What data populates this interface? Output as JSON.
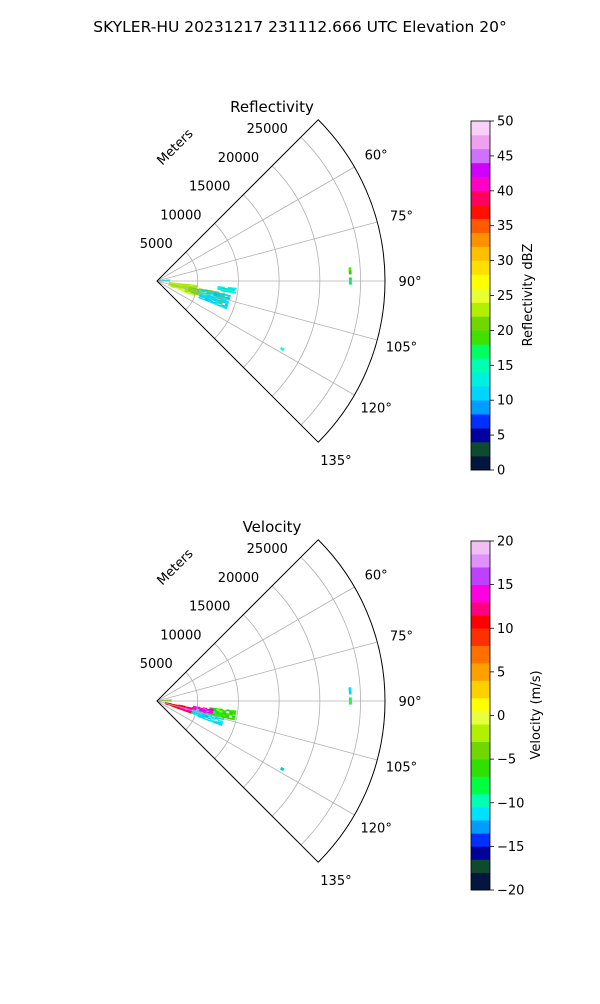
{
  "figure": {
    "suptitle": "SKYLER-HU  20231217  231112.666 UTC Elevation 20°"
  },
  "chart_data": [
    {
      "type": "polar_ppi",
      "title": "Reflectivity",
      "radial_label": "Meters",
      "r_ticks": [
        5000,
        10000,
        15000,
        20000,
        25000
      ],
      "r_tick_labels": [
        "5000",
        "10000",
        "15000",
        "20000",
        "25000"
      ],
      "r_max": 28000,
      "theta_range_deg": [
        45,
        135
      ],
      "theta_ticks_deg": [
        60,
        75,
        90,
        105,
        120,
        135
      ],
      "theta_tick_labels": [
        "60°",
        "75°",
        "90°",
        "105°",
        "120°",
        "135°"
      ],
      "grid": true,
      "colorbar": {
        "label": "Reflectivity dBZ",
        "min": 0,
        "max": 50,
        "ticks": [
          0,
          5,
          10,
          15,
          20,
          25,
          30,
          35,
          40,
          45,
          50
        ],
        "tick_labels": [
          "0",
          "5",
          "10",
          "15",
          "20",
          "25",
          "30",
          "35",
          "40",
          "45",
          "50"
        ],
        "color_stops": [
          [
            0,
            "#04153f"
          ],
          [
            2,
            "#0d4a2e"
          ],
          [
            4,
            "#00009a"
          ],
          [
            6,
            "#0030ff"
          ],
          [
            8,
            "#009cff"
          ],
          [
            10,
            "#00d4ff"
          ],
          [
            12,
            "#00f0e0"
          ],
          [
            14,
            "#00ffb0"
          ],
          [
            16,
            "#00ff60"
          ],
          [
            18,
            "#40e000"
          ],
          [
            20,
            "#70d800"
          ],
          [
            22,
            "#b0f000"
          ],
          [
            24,
            "#e8ff30"
          ],
          [
            26,
            "#ffff00"
          ],
          [
            28,
            "#ffe000"
          ],
          [
            30,
            "#ffc000"
          ],
          [
            32,
            "#ff9000"
          ],
          [
            34,
            "#ff5a00"
          ],
          [
            36,
            "#ff1000"
          ],
          [
            38,
            "#ff0060"
          ],
          [
            40,
            "#ff00c8"
          ],
          [
            42,
            "#d000ff"
          ],
          [
            44,
            "#d070ff"
          ],
          [
            46,
            "#f0a0f0"
          ],
          [
            48,
            "#f8d0f8"
          ],
          [
            50,
            "#fdf0fd"
          ]
        ]
      },
      "echo_regions": [
        {
          "theta_deg": [
            96,
            112
          ],
          "range_m": [
            1500,
            5000
          ],
          "value": 22
        },
        {
          "theta_deg": [
            100,
            109
          ],
          "range_m": [
            4000,
            8500
          ],
          "value": 20
        },
        {
          "theta_deg": [
            102,
            107
          ],
          "range_m": [
            5500,
            8000
          ],
          "value": 25
        },
        {
          "theta_deg": [
            101,
            112
          ],
          "range_m": [
            5500,
            9200
          ],
          "value": 11
        },
        {
          "theta_deg": [
            95,
            99
          ],
          "range_m": [
            7500,
            9800
          ],
          "value": 12
        },
        {
          "theta_deg": [
            84,
            92
          ],
          "range_m": [
            0,
            1600
          ],
          "value": 10
        },
        {
          "theta_deg": [
            86,
            88
          ],
          "range_m": [
            23600,
            23900
          ],
          "value": 18
        },
        {
          "theta_deg": [
            89,
            91
          ],
          "range_m": [
            23600,
            23900
          ],
          "value": 17
        },
        {
          "theta_deg": [
            118,
            119
          ],
          "range_m": [
            17300,
            17700
          ],
          "value": 13
        }
      ]
    },
    {
      "type": "polar_ppi",
      "title": "Velocity",
      "radial_label": "Meters",
      "r_ticks": [
        5000,
        10000,
        15000,
        20000,
        25000
      ],
      "r_tick_labels": [
        "5000",
        "10000",
        "15000",
        "20000",
        "25000"
      ],
      "r_max": 28000,
      "theta_range_deg": [
        45,
        135
      ],
      "theta_ticks_deg": [
        60,
        75,
        90,
        105,
        120,
        135
      ],
      "theta_tick_labels": [
        "60°",
        "75°",
        "90°",
        "105°",
        "120°",
        "135°"
      ],
      "grid": true,
      "colorbar": {
        "label": "Velocity (m/s)",
        "min": -20,
        "max": 20,
        "ticks": [
          -20,
          -15,
          -10,
          -5,
          0,
          5,
          10,
          15,
          20
        ],
        "tick_labels": [
          "−20",
          "−15",
          "−10",
          "−5",
          "0",
          "5",
          "10",
          "15",
          "20"
        ],
        "color_stops": [
          [
            -20,
            "#04153f"
          ],
          [
            -18,
            "#0d4a2e"
          ],
          [
            -16.5,
            "#00009a"
          ],
          [
            -15,
            "#0030ff"
          ],
          [
            -13.5,
            "#009cff"
          ],
          [
            -12,
            "#00e0ff"
          ],
          [
            -10.5,
            "#00ffb0"
          ],
          [
            -9,
            "#00ff40"
          ],
          [
            -7,
            "#30e000"
          ],
          [
            -5,
            "#70d800"
          ],
          [
            -3,
            "#b0f000"
          ],
          [
            -1,
            "#e8ff40"
          ],
          [
            0.5,
            "#ffff00"
          ],
          [
            2,
            "#ffd000"
          ],
          [
            4,
            "#ffa000"
          ],
          [
            6,
            "#ff7000"
          ],
          [
            8,
            "#ff3000"
          ],
          [
            10,
            "#ff0000"
          ],
          [
            11.5,
            "#ff0080"
          ],
          [
            13,
            "#ff00e0"
          ],
          [
            15,
            "#c040ff"
          ],
          [
            17,
            "#e090ff"
          ],
          [
            18.5,
            "#f0c0f4"
          ],
          [
            20,
            "#fcecfc"
          ]
        ]
      },
      "echo_regions": [
        {
          "theta_deg": [
            100,
            110
          ],
          "range_m": [
            1000,
            5000
          ],
          "value": 11
        },
        {
          "theta_deg": [
            103,
            108
          ],
          "range_m": [
            3000,
            6500
          ],
          "value": 13
        },
        {
          "theta_deg": [
            101,
            111
          ],
          "range_m": [
            4500,
            8500
          ],
          "value": -11
        },
        {
          "theta_deg": [
            97,
            104
          ],
          "range_m": [
            6500,
            9800
          ],
          "value": -7
        },
        {
          "theta_deg": [
            98,
            103
          ],
          "range_m": [
            4500,
            7000
          ],
          "value": 14
        },
        {
          "theta_deg": [
            84,
            92
          ],
          "range_m": [
            0,
            1800
          ],
          "value": -4
        },
        {
          "theta_deg": [
            86,
            88
          ],
          "range_m": [
            23600,
            23900
          ],
          "value": -12
        },
        {
          "theta_deg": [
            89,
            91
          ],
          "range_m": [
            23600,
            23900
          ],
          "value": -8
        },
        {
          "theta_deg": [
            118,
            119
          ],
          "range_m": [
            17300,
            17700
          ],
          "value": -12
        }
      ]
    }
  ]
}
